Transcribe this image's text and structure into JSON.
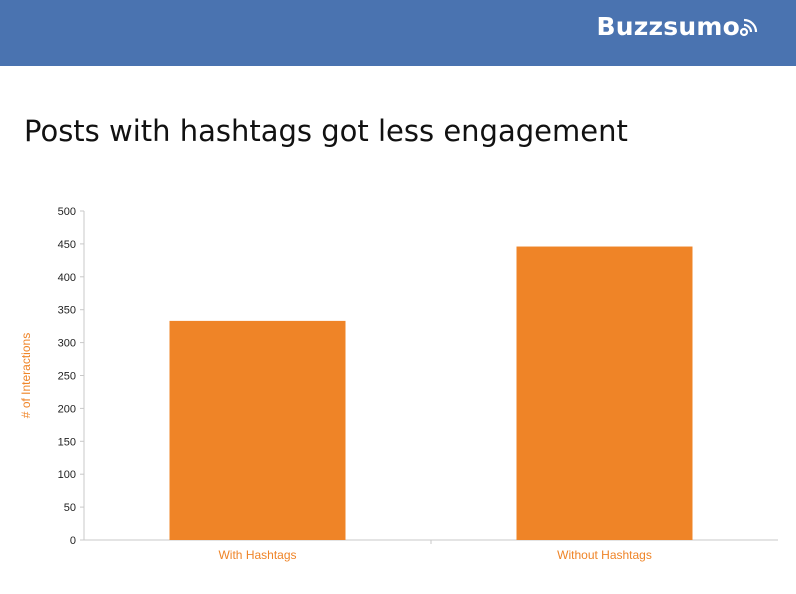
{
  "header": {
    "brand": "Buzzsumo",
    "brand_icon": "signal-icon",
    "banner_color": "#4a73b0"
  },
  "slide": {
    "title": "Posts with hashtags got less engagement"
  },
  "chart_data": {
    "type": "bar",
    "categories": [
      "With Hashtags",
      "Without Hashtags"
    ],
    "values": [
      333,
      446
    ],
    "ylabel": "# of Interactions",
    "ylim": [
      0,
      500
    ],
    "yticks": [
      0,
      50,
      100,
      150,
      200,
      250,
      300,
      350,
      400,
      450,
      500
    ],
    "grid": false,
    "bar_color": "#ef8427",
    "label_color": "#ef8427"
  }
}
